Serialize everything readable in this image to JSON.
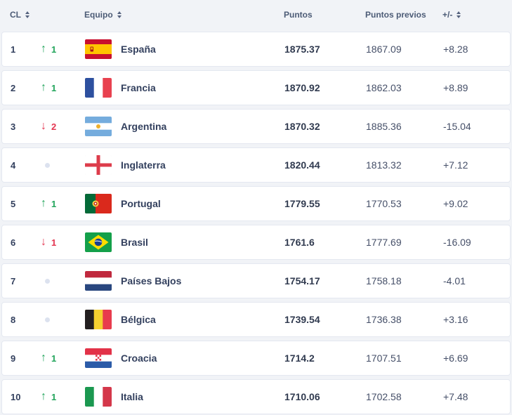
{
  "table": {
    "columns": {
      "rank": "CL",
      "team": "Equipo",
      "points": "Puntos",
      "prev_points": "Puntos previos",
      "diff": "+/-"
    },
    "rows": [
      {
        "rank": "1",
        "movement": "up",
        "movement_value": "1",
        "flag": "flag-es",
        "team": "España",
        "points": "1875.37",
        "prev_points": "1867.09",
        "diff": "+8.28"
      },
      {
        "rank": "2",
        "movement": "up",
        "movement_value": "1",
        "flag": "flag-fr",
        "team": "Francia",
        "points": "1870.92",
        "prev_points": "1862.03",
        "diff": "+8.89"
      },
      {
        "rank": "3",
        "movement": "down",
        "movement_value": "2",
        "flag": "flag-ar",
        "team": "Argentina",
        "points": "1870.32",
        "prev_points": "1885.36",
        "diff": "-15.04"
      },
      {
        "rank": "4",
        "movement": "none",
        "movement_value": "",
        "flag": "flag-en",
        "team": "Inglaterra",
        "points": "1820.44",
        "prev_points": "1813.32",
        "diff": "+7.12"
      },
      {
        "rank": "5",
        "movement": "up",
        "movement_value": "1",
        "flag": "flag-pt",
        "team": "Portugal",
        "points": "1779.55",
        "prev_points": "1770.53",
        "diff": "+9.02"
      },
      {
        "rank": "6",
        "movement": "down",
        "movement_value": "1",
        "flag": "flag-br",
        "team": "Brasil",
        "points": "1761.6",
        "prev_points": "1777.69",
        "diff": "-16.09"
      },
      {
        "rank": "7",
        "movement": "none",
        "movement_value": "",
        "flag": "flag-nl",
        "team": "Países Bajos",
        "points": "1754.17",
        "prev_points": "1758.18",
        "diff": "-4.01"
      },
      {
        "rank": "8",
        "movement": "none",
        "movement_value": "",
        "flag": "flag-be",
        "team": "Bélgica",
        "points": "1739.54",
        "prev_points": "1736.38",
        "diff": "+3.16"
      },
      {
        "rank": "9",
        "movement": "up",
        "movement_value": "1",
        "flag": "flag-hr",
        "team": "Croacia",
        "points": "1714.2",
        "prev_points": "1707.51",
        "diff": "+6.69"
      },
      {
        "rank": "10",
        "movement": "up",
        "movement_value": "1",
        "flag": "flag-it",
        "team": "Italia",
        "points": "1710.06",
        "prev_points": "1702.58",
        "diff": "+7.48"
      }
    ]
  },
  "icons": {
    "up_arrow": "↑",
    "down_arrow": "↓",
    "sort": "sort-icon"
  },
  "colors": {
    "up_green": "#23a55c",
    "down_red": "#e43550",
    "neutral_dot": "#dce2ef",
    "header_text": "#4c5b76",
    "row_border": "#e4e8f0",
    "background": "#f1f3f7"
  }
}
